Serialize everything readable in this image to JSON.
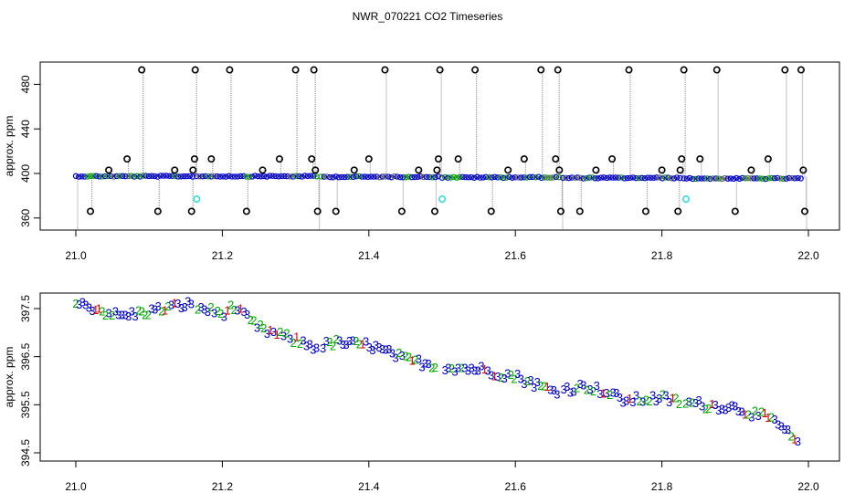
{
  "title": "NWR_070221  CO2 Timeseries",
  "colors": {
    "grey_trace": "#9a9a9a",
    "black_marker": "#000000",
    "blue_marker": "#0000cc",
    "green_marker": "#00a000",
    "cyan_marker": "#33dddd",
    "red_label": "#dd0000",
    "green_label": "#00aa00",
    "blue_label": "#0000cc"
  },
  "chart_data": [
    {
      "type": "scatter",
      "panel": "top",
      "title": "",
      "xlabel": "",
      "ylabel": "approx. ppm",
      "xlim": [
        21.0,
        22.0
      ],
      "ylim": [
        350,
        500
      ],
      "x_ticks": [
        21.0,
        21.2,
        21.4,
        21.6,
        21.8,
        22.0
      ],
      "x_tick_labels": [
        "21.0",
        "21.2",
        "21.4",
        "21.6",
        "21.8",
        "22.0"
      ],
      "y_ticks": [
        360,
        400,
        440,
        480
      ],
      "y_tick_labels": [
        "360",
        "400",
        "440",
        "480"
      ],
      "grid": false,
      "legend": "none",
      "baseline": {
        "description_hidden": true,
        "segments": [
          [
            21.0,
            21.16,
            397.5
          ],
          [
            21.165,
            21.33,
            397.5
          ],
          [
            21.335,
            21.495,
            397.0
          ],
          [
            21.5,
            21.66,
            396.5
          ],
          [
            21.665,
            21.825,
            396.0
          ],
          [
            21.83,
            21.99,
            395.5
          ]
        ]
      },
      "series": [
        {
          "marker": "black-circle",
          "points": [
            [
              21.02,
              366
            ],
            [
              21.045,
              403
            ],
            [
              21.07,
              413
            ],
            [
              21.09,
              493
            ],
            [
              21.112,
              366
            ],
            [
              21.135,
              403
            ],
            [
              21.158,
              366
            ],
            [
              21.16,
              403
            ],
            [
              21.162,
              413
            ],
            [
              21.163,
              493
            ],
            [
              21.185,
              413
            ],
            [
              21.21,
              493
            ],
            [
              21.233,
              366
            ],
            [
              21.255,
              403
            ],
            [
              21.278,
              413
            ],
            [
              21.3,
              493
            ],
            [
              21.322,
              413
            ],
            [
              21.325,
              493
            ],
            [
              21.327,
              403
            ],
            [
              21.33,
              366
            ],
            [
              21.355,
              366
            ],
            [
              21.38,
              403
            ],
            [
              21.4,
              413
            ],
            [
              21.422,
              493
            ],
            [
              21.445,
              366
            ],
            [
              21.468,
              403
            ],
            [
              21.49,
              366
            ],
            [
              21.493,
              403
            ],
            [
              21.495,
              413
            ],
            [
              21.497,
              493
            ],
            [
              21.522,
              413
            ],
            [
              21.545,
              493
            ],
            [
              21.567,
              366
            ],
            [
              21.59,
              403
            ],
            [
              21.612,
              413
            ],
            [
              21.635,
              493
            ],
            [
              21.655,
              413
            ],
            [
              21.658,
              493
            ],
            [
              21.66,
              403
            ],
            [
              21.662,
              366
            ],
            [
              21.688,
              366
            ],
            [
              21.71,
              403
            ],
            [
              21.732,
              413
            ],
            [
              21.755,
              493
            ],
            [
              21.778,
              366
            ],
            [
              21.8,
              403
            ],
            [
              21.822,
              366
            ],
            [
              21.825,
              403
            ],
            [
              21.827,
              413
            ],
            [
              21.83,
              493
            ],
            [
              21.852,
              413
            ],
            [
              21.875,
              493
            ],
            [
              21.9,
              366
            ],
            [
              21.922,
              403
            ],
            [
              21.945,
              413
            ],
            [
              21.968,
              493
            ],
            [
              21.99,
              493
            ],
            [
              21.993,
              403
            ],
            [
              21.995,
              366
            ]
          ]
        },
        {
          "marker": "cyan-circle",
          "points": [
            [
              21.165,
              377
            ],
            [
              21.5,
              377
            ],
            [
              21.833,
              377
            ]
          ]
        }
      ]
    },
    {
      "type": "scatter",
      "panel": "bottom",
      "title": "",
      "xlabel": "",
      "ylabel": "approx. ppm",
      "xlim": [
        21.0,
        22.0
      ],
      "ylim": [
        394.3,
        397.95
      ],
      "x_ticks": [
        21.0,
        21.2,
        21.4,
        21.6,
        21.8,
        22.0
      ],
      "x_tick_labels": [
        "21.0",
        "21.2",
        "21.4",
        "21.6",
        "21.8",
        "22.0"
      ],
      "y_ticks": [
        394.5,
        395.5,
        396.5,
        397.5
      ],
      "y_tick_labels": [
        "394.5",
        "395.5",
        "396.5",
        "397.5"
      ],
      "grid": false,
      "legend": "none",
      "marker_labels": [
        "1",
        "2",
        "3"
      ],
      "trend_knots": [
        [
          21.0,
          397.6
        ],
        [
          21.02,
          397.55
        ],
        [
          21.06,
          397.35
        ],
        [
          21.1,
          397.45
        ],
        [
          21.15,
          397.6
        ],
        [
          21.2,
          397.4
        ],
        [
          21.215,
          397.55
        ],
        [
          21.25,
          397.1
        ],
        [
          21.3,
          396.85
        ],
        [
          21.33,
          396.7
        ],
        [
          21.35,
          396.8
        ],
        [
          21.4,
          396.75
        ],
        [
          21.45,
          396.45
        ],
        [
          21.5,
          396.3
        ],
        [
          21.55,
          396.25
        ],
        [
          21.6,
          396.1
        ],
        [
          21.65,
          395.8
        ],
        [
          21.7,
          395.9
        ],
        [
          21.75,
          395.6
        ],
        [
          21.8,
          395.65
        ],
        [
          21.83,
          395.55
        ],
        [
          21.9,
          395.45
        ],
        [
          21.95,
          395.2
        ],
        [
          21.97,
          394.95
        ],
        [
          21.99,
          394.6
        ]
      ]
    }
  ]
}
